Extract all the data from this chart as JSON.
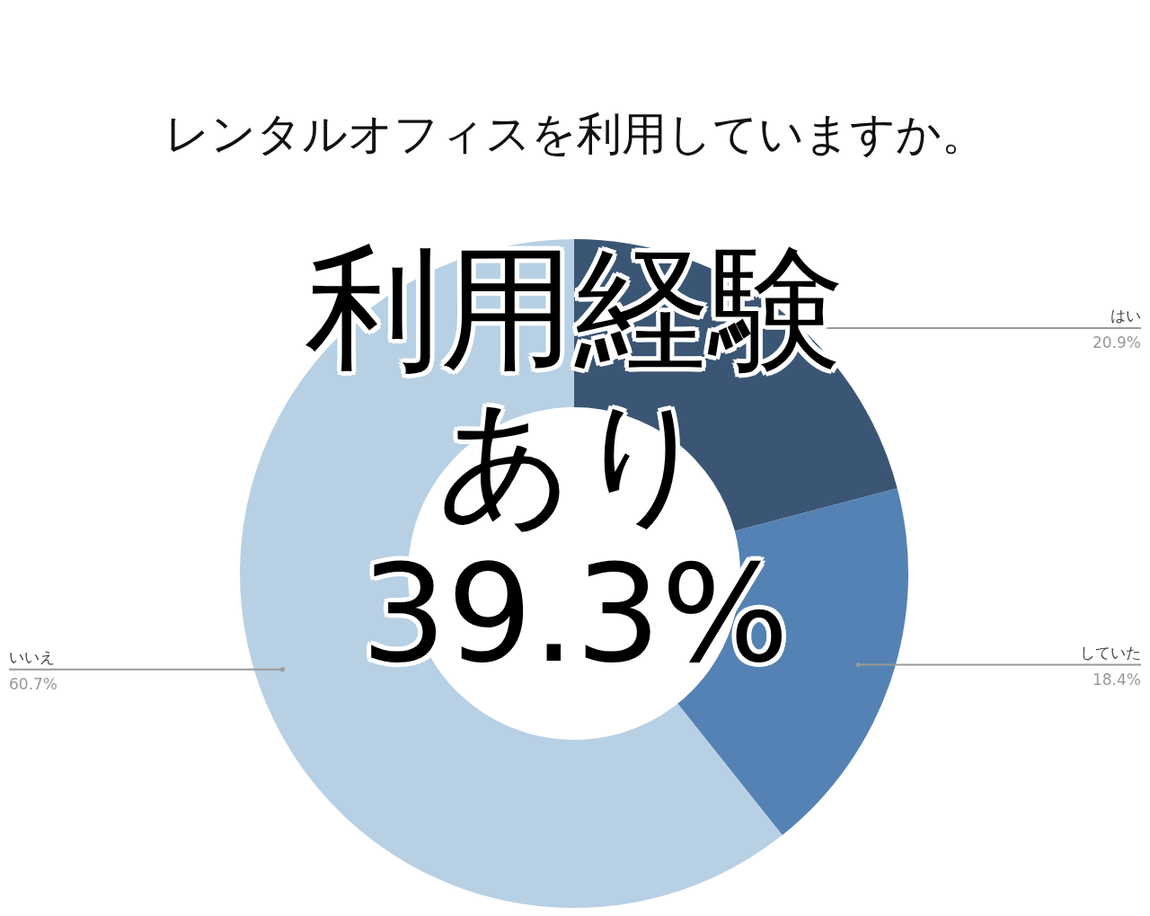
{
  "chart_data": {
    "type": "donut",
    "title": "レンタルオフィスを利用していますか。",
    "categories": [
      "はい",
      "していた",
      "いいえ"
    ],
    "values": [
      20.9,
      18.4,
      60.7
    ],
    "value_labels": [
      "20.9%",
      "18.4%",
      "60.7%"
    ],
    "colors": [
      "#3b5675",
      "#5482b4",
      "#b8d0e4"
    ],
    "annotations": [
      "利用経験あり39.3%"
    ]
  }
}
